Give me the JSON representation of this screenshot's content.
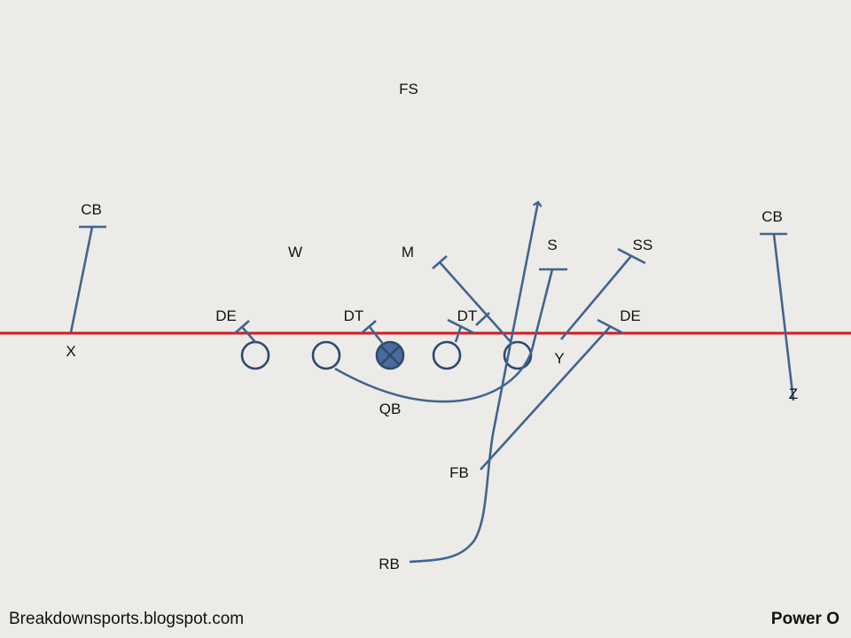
{
  "title": "Power O",
  "watermark": "Breakdownsports.blogspot.com",
  "colors": {
    "background": "#ecebe8",
    "line_of_scrimmage": "#d9191c",
    "routes": "#41648f",
    "players": "#2f4a6e",
    "center_fill": "#4a6a9c"
  },
  "defense_labels": {
    "fs": "FS",
    "cb_left": "CB",
    "w": "W",
    "m": "M",
    "s": "S",
    "ss": "SS",
    "cb_right": "CB",
    "de_left": "DE",
    "dt_left": "DT",
    "dt_right": "DT",
    "de_right": "DE"
  },
  "offense_labels": {
    "x": "X",
    "y": "Y",
    "z": "Z",
    "qb": "QB",
    "fb": "FB",
    "rb": "RB"
  }
}
